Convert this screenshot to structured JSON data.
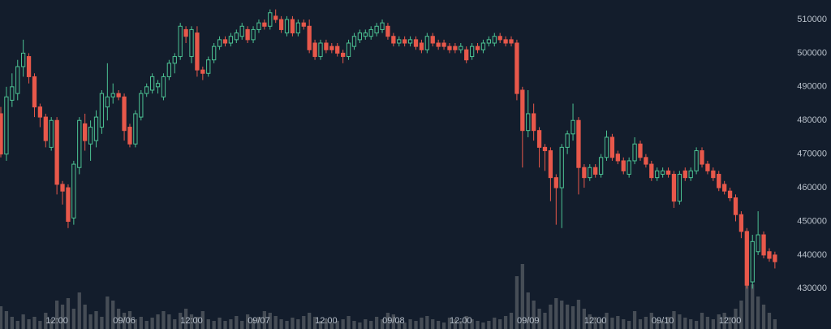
{
  "chart_data": {
    "type": "candlestick",
    "up_color": "#4cc293",
    "down_color": "#e8584b",
    "volume_color": "#50565e",
    "xlim": [
      0,
      148
    ],
    "ylim": [
      418000,
      515800
    ],
    "yticks": [
      430000,
      440000,
      450000,
      460000,
      470000,
      480000,
      490000,
      500000,
      510000
    ],
    "xticks": [
      {
        "value": 10,
        "label": "12:00"
      },
      {
        "value": 22,
        "label": "09/06"
      },
      {
        "value": 34,
        "label": "12:00"
      },
      {
        "value": 46,
        "label": "09/07"
      },
      {
        "value": 58,
        "label": "12:00"
      },
      {
        "value": 70,
        "label": "09/08"
      },
      {
        "value": 82,
        "label": "12:00"
      },
      {
        "value": 94,
        "label": "09/09"
      },
      {
        "value": 106,
        "label": "12:00"
      },
      {
        "value": 118,
        "label": "09/10"
      },
      {
        "value": 130,
        "label": "12:00"
      }
    ],
    "x": [
      0,
      1,
      2,
      3,
      4,
      5,
      6,
      7,
      8,
      9,
      10,
      11,
      12,
      13,
      14,
      15,
      16,
      17,
      18,
      19,
      20,
      21,
      22,
      23,
      24,
      25,
      26,
      27,
      28,
      29,
      30,
      31,
      32,
      33,
      34,
      35,
      36,
      37,
      38,
      39,
      40,
      41,
      42,
      43,
      44,
      45,
      46,
      47,
      48,
      49,
      50,
      51,
      52,
      53,
      54,
      55,
      56,
      57,
      58,
      59,
      60,
      61,
      62,
      63,
      64,
      65,
      66,
      67,
      68,
      69,
      70,
      71,
      72,
      73,
      74,
      75,
      76,
      77,
      78,
      79,
      80,
      81,
      82,
      83,
      84,
      85,
      86,
      87,
      88,
      89,
      90,
      91,
      92,
      93,
      94,
      95,
      96,
      97,
      98,
      99,
      100,
      101,
      102,
      103,
      104,
      105,
      106,
      107,
      108,
      109,
      110,
      111,
      112,
      113,
      114,
      115,
      116,
      117,
      118,
      119,
      120,
      121,
      122,
      123,
      124,
      125,
      126,
      127,
      128,
      129,
      130,
      131,
      132,
      133,
      134,
      135,
      136,
      137,
      138
    ],
    "open": [
      482000,
      470000,
      486000,
      488000,
      496000,
      499000,
      493000,
      484000,
      481000,
      472000,
      480000,
      461000,
      460000,
      451000,
      466000,
      479000,
      473000,
      474000,
      478000,
      484000,
      487000,
      488000,
      487000,
      478000,
      473000,
      481000,
      488000,
      489000,
      490000,
      487000,
      493000,
      497000,
      499000,
      507000,
      499000,
      506000,
      495000,
      494000,
      498000,
      502000,
      504000,
      503000,
      504000,
      505000,
      507000,
      504000,
      507000,
      509000,
      508000,
      511000,
      510000,
      506000,
      510000,
      506000,
      509000,
      508000,
      503000,
      499000,
      503000,
      502000,
      502000,
      500000,
      499000,
      502000,
      504000,
      505000,
      505000,
      506000,
      507000,
      508000,
      505000,
      503000,
      504000,
      503000,
      504000,
      503000,
      501000,
      505000,
      503000,
      503000,
      502000,
      502000,
      501000,
      501000,
      499000,
      502000,
      501000,
      503000,
      503000,
      505000,
      504000,
      504000,
      503000,
      489000,
      477000,
      482000,
      477000,
      472000,
      471000,
      463000,
      460000,
      472000,
      476000,
      480000,
      466000,
      463000,
      466000,
      464000,
      469000,
      475000,
      470000,
      468000,
      464000,
      468000,
      473000,
      469000,
      467000,
      463000,
      464000,
      465000,
      464000,
      456000,
      465000,
      463000,
      465000,
      471000,
      467000,
      465000,
      464000,
      461000,
      459000,
      457000,
      452000,
      447000,
      432000,
      441000,
      446000,
      441000,
      440000
    ],
    "high": [
      484000,
      490000,
      494000,
      498000,
      504000,
      500000,
      494000,
      485000,
      482000,
      481000,
      481000,
      462000,
      461000,
      468000,
      481000,
      482000,
      480000,
      483000,
      489000,
      497000,
      491000,
      489000,
      488000,
      479000,
      483000,
      489000,
      491000,
      494000,
      492000,
      494000,
      498000,
      500000,
      509000,
      508000,
      508000,
      508000,
      496000,
      499000,
      503000,
      505000,
      505000,
      506000,
      507000,
      509000,
      508000,
      508000,
      510000,
      510000,
      513000,
      513000,
      511000,
      511000,
      511000,
      510000,
      510000,
      510000,
      504000,
      504000,
      504000,
      503000,
      503000,
      501000,
      504000,
      506000,
      507000,
      507000,
      508000,
      509000,
      510000,
      509000,
      506000,
      505000,
      505000,
      505000,
      505000,
      504000,
      506000,
      506000,
      504000,
      504000,
      503000,
      503000,
      503000,
      502000,
      503000,
      503000,
      504000,
      505000,
      506000,
      506000,
      505000,
      505000,
      504000,
      490000,
      489000,
      485000,
      478000,
      473000,
      472000,
      464000,
      473000,
      477000,
      485000,
      481000,
      467000,
      467000,
      467000,
      470000,
      477000,
      476000,
      471000,
      469000,
      469000,
      475000,
      474000,
      470000,
      468000,
      466000,
      466000,
      466000,
      465000,
      465000,
      466000,
      466000,
      472000,
      472000,
      468000,
      466000,
      465000,
      462000,
      460000,
      458000,
      453000,
      448000,
      446000,
      453000,
      447000,
      442000,
      441000
    ],
    "low": [
      469000,
      468000,
      484000,
      486000,
      493000,
      491000,
      481000,
      478000,
      472000,
      471000,
      458000,
      455000,
      448000,
      449000,
      464000,
      471000,
      468000,
      472000,
      476000,
      480000,
      485000,
      486000,
      474000,
      472000,
      472000,
      480000,
      487000,
      488000,
      488000,
      486000,
      492000,
      494000,
      498000,
      503000,
      497000,
      493000,
      492000,
      493000,
      497000,
      501000,
      502000,
      502000,
      503000,
      504000,
      503000,
      503000,
      506000,
      507000,
      507000,
      509000,
      506000,
      505000,
      505000,
      505000,
      507000,
      500000,
      498000,
      498000,
      500000,
      500000,
      499000,
      497000,
      498000,
      501000,
      503000,
      504000,
      504000,
      505000,
      506000,
      504000,
      502000,
      502000,
      502000,
      502000,
      501000,
      500000,
      500000,
      502000,
      501000,
      501000,
      500000,
      500000,
      500000,
      497000,
      498000,
      500000,
      500000,
      502000,
      502000,
      503000,
      502000,
      502000,
      486000,
      466000,
      475000,
      474000,
      466000,
      465000,
      456000,
      449000,
      448000,
      470000,
      474000,
      458000,
      460000,
      462000,
      463000,
      463000,
      468000,
      468000,
      467000,
      464000,
      463000,
      467000,
      468000,
      466000,
      462000,
      462000,
      463000,
      463000,
      454000,
      455000,
      462000,
      462000,
      464000,
      466000,
      464000,
      462000,
      459000,
      458000,
      456000,
      450000,
      445000,
      430000,
      430000,
      440000,
      439000,
      438000,
      436000
    ],
    "close": [
      470000,
      487000,
      490000,
      496000,
      500000,
      493000,
      484000,
      481000,
      474000,
      480000,
      461000,
      459000,
      450000,
      467000,
      480000,
      474000,
      478000,
      481000,
      488000,
      487000,
      488000,
      487000,
      477000,
      473000,
      482000,
      488000,
      490000,
      493000,
      491000,
      493000,
      497000,
      499000,
      508000,
      505000,
      507000,
      495000,
      494000,
      498000,
      502000,
      504000,
      503000,
      505000,
      506000,
      508000,
      504000,
      507000,
      509000,
      508000,
      512000,
      510000,
      507000,
      510000,
      506000,
      509000,
      508000,
      501000,
      499000,
      503000,
      501000,
      501000,
      500000,
      499000,
      503000,
      505000,
      506000,
      506000,
      507000,
      508000,
      509000,
      505000,
      503000,
      504000,
      503000,
      504000,
      502000,
      501000,
      505000,
      503000,
      502000,
      502000,
      501000,
      501000,
      502000,
      498000,
      502000,
      501000,
      503000,
      504000,
      505000,
      504000,
      503000,
      503000,
      488000,
      477000,
      482000,
      477000,
      472000,
      471000,
      463000,
      460000,
      472000,
      476000,
      480000,
      466000,
      463000,
      466000,
      464000,
      469000,
      475000,
      469000,
      468000,
      465000,
      468000,
      473000,
      469000,
      467000,
      463000,
      465000,
      465000,
      464000,
      456000,
      464000,
      463000,
      465000,
      471000,
      467000,
      465000,
      463000,
      460000,
      459000,
      457000,
      452000,
      447000,
      431000,
      444000,
      446000,
      440000,
      439000,
      438000
    ],
    "volume": [
      28,
      22,
      15,
      10,
      18,
      12,
      15,
      10,
      20,
      12,
      35,
      30,
      38,
      25,
      45,
      30,
      18,
      22,
      15,
      40,
      35,
      25,
      20,
      22,
      12,
      15,
      10,
      14,
      18,
      22,
      18,
      12,
      20,
      25,
      18,
      15,
      22,
      12,
      10,
      14,
      10,
      12,
      16,
      10,
      18,
      12,
      15,
      22,
      20,
      16,
      12,
      10,
      14,
      12,
      16,
      20,
      15,
      10,
      12,
      8,
      10,
      12,
      16,
      10,
      8,
      12,
      10,
      15,
      12,
      20,
      18,
      10,
      8,
      12,
      10,
      14,
      16,
      12,
      10,
      8,
      14,
      12,
      10,
      16,
      12,
      10,
      8,
      10,
      14,
      12,
      16,
      20,
      65,
      80,
      45,
      35,
      25,
      20,
      30,
      38,
      35,
      30,
      28,
      36,
      25,
      18,
      15,
      12,
      20,
      14,
      16,
      12,
      10,
      22,
      12,
      15,
      20,
      12,
      10,
      15,
      22,
      18,
      14,
      12,
      10,
      20,
      15,
      12,
      18,
      20,
      15,
      25,
      35,
      60,
      55,
      40,
      30,
      20,
      12
    ]
  }
}
